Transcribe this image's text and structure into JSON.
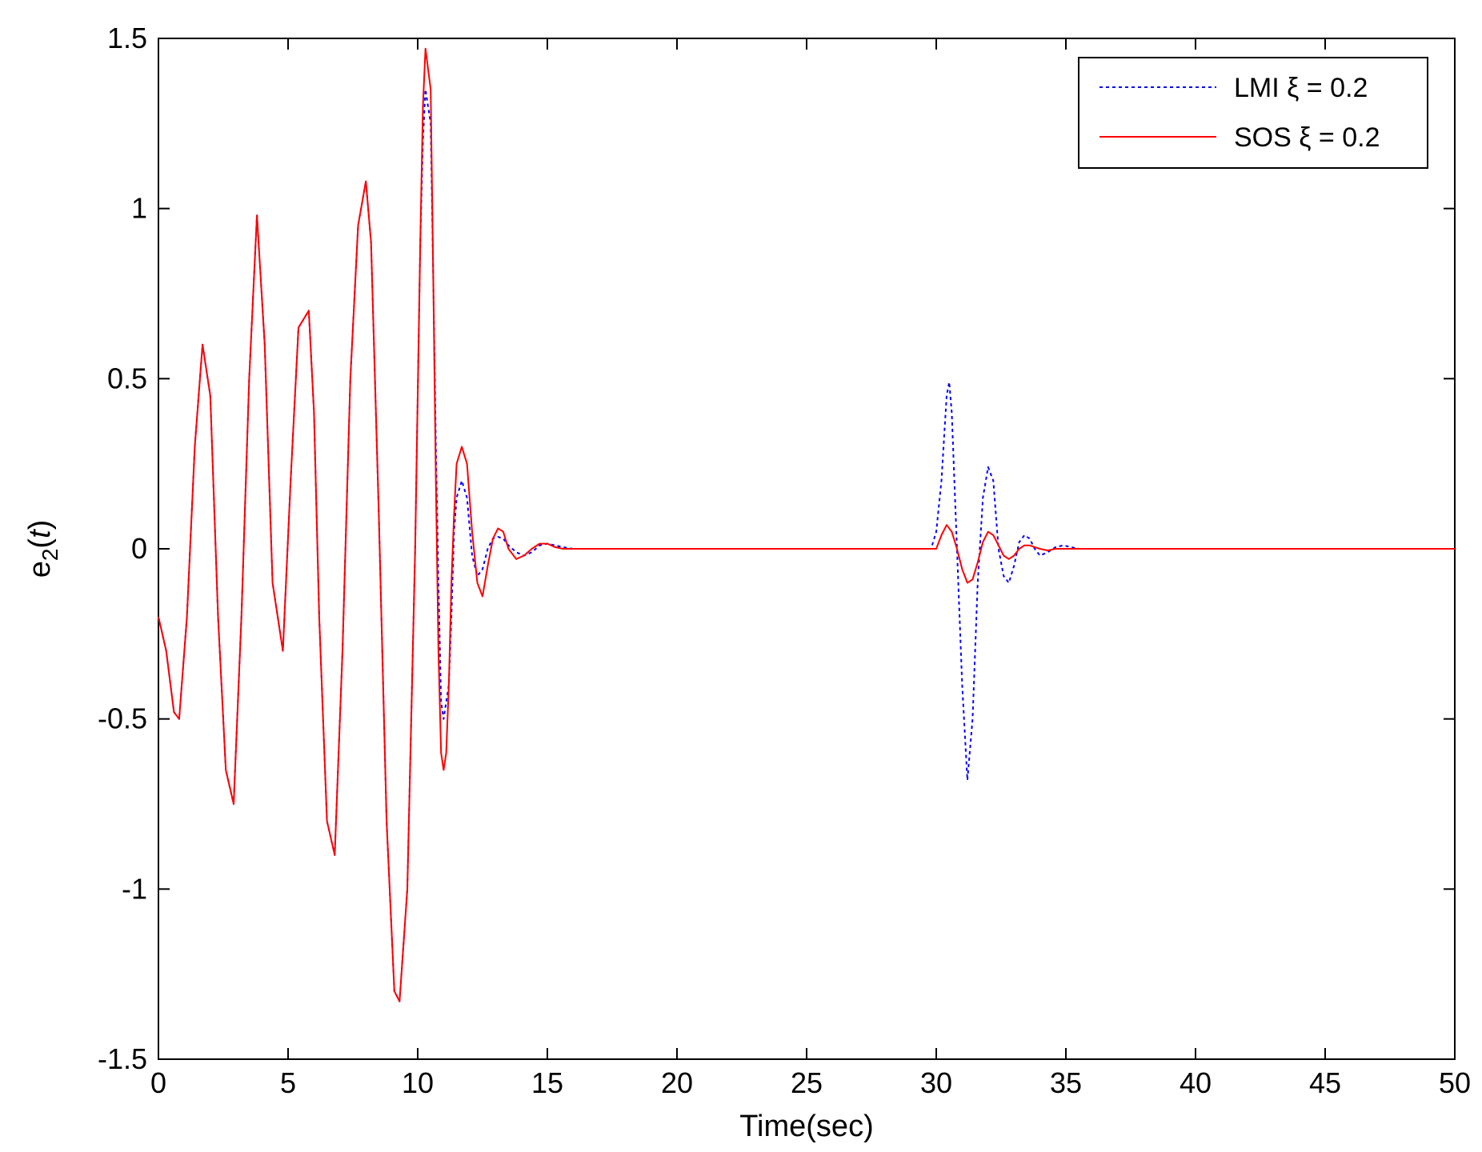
{
  "chart_data": {
    "type": "line",
    "title": "",
    "xlabel": "Time(sec)",
    "ylabel": "e2(t)",
    "ylabel_base": "e",
    "ylabel_sub": "2",
    "ylabel_open": "(",
    "ylabel_arg": "t",
    "ylabel_close": ")",
    "xlim": [
      0,
      50
    ],
    "ylim": [
      -1.5,
      1.5
    ],
    "xticks": [
      0,
      5,
      10,
      15,
      20,
      25,
      30,
      35,
      40,
      45,
      50
    ],
    "yticks": [
      -1.5,
      -1,
      -0.5,
      0,
      0.5,
      1,
      1.5
    ],
    "xtick_labels": [
      "0",
      "5",
      "10",
      "15",
      "20",
      "25",
      "30",
      "35",
      "40",
      "45",
      "50"
    ],
    "ytick_labels": [
      "-1.5",
      "-1",
      "-0.5",
      "0",
      "0.5",
      "1",
      "1.5"
    ],
    "grid": false,
    "legend_position": "top-right",
    "series": [
      {
        "name": "LMI  ξ = 0.2",
        "color": "#0000ff",
        "style": "dotted",
        "x": [
          0,
          0.3,
          0.6,
          0.8,
          1.1,
          1.4,
          1.7,
          2.0,
          2.3,
          2.6,
          2.9,
          3.2,
          3.5,
          3.8,
          4.1,
          4.4,
          4.8,
          5.1,
          5.4,
          5.8,
          6.0,
          6.2,
          6.5,
          6.8,
          7.1,
          7.4,
          7.7,
          8.0,
          8.2,
          8.5,
          8.8,
          9.1,
          9.3,
          9.6,
          9.9,
          10.1,
          10.2,
          10.3,
          10.5,
          10.6,
          10.7,
          10.8,
          10.9,
          11.0,
          11.1,
          11.2,
          11.3,
          11.4,
          11.5,
          11.7,
          11.9,
          12.1,
          12.3,
          12.5,
          12.7,
          12.9,
          13.1,
          13.3,
          13.5,
          13.8,
          14.1,
          14.4,
          14.7,
          15.0,
          15.3,
          15.6,
          16.0,
          16.4,
          20,
          25,
          29.8,
          30.0,
          30.2,
          30.4,
          30.5,
          30.6,
          30.8,
          31.0,
          31.2,
          31.4,
          31.6,
          31.8,
          32.0,
          32.2,
          32.4,
          32.6,
          32.8,
          33.0,
          33.2,
          33.4,
          33.6,
          33.8,
          34.0,
          34.3,
          34.6,
          34.9,
          35.2,
          35.5,
          35.9,
          40,
          45,
          50
        ],
        "values": [
          -0.2,
          -0.3,
          -0.48,
          -0.5,
          -0.2,
          0.3,
          0.6,
          0.45,
          -0.2,
          -0.65,
          -0.75,
          -0.2,
          0.5,
          0.98,
          0.6,
          -0.1,
          -0.3,
          0.2,
          0.65,
          0.7,
          0.4,
          -0.2,
          -0.8,
          -0.9,
          -0.3,
          0.5,
          0.95,
          1.08,
          0.9,
          0.1,
          -0.8,
          -1.3,
          -1.33,
          -1.0,
          0.0,
          0.9,
          1.2,
          1.35,
          1.25,
          0.8,
          0.3,
          -0.1,
          -0.45,
          -0.5,
          -0.45,
          -0.4,
          -0.2,
          0.05,
          0.15,
          0.2,
          0.15,
          -0.02,
          -0.08,
          -0.06,
          0.0,
          0.03,
          0.035,
          0.03,
          0.01,
          -0.01,
          -0.02,
          -0.01,
          0.01,
          0.015,
          0.01,
          0.005,
          0.0,
          0.0,
          0.0,
          0.0,
          0.0,
          0.05,
          0.2,
          0.45,
          0.49,
          0.4,
          0.0,
          -0.4,
          -0.68,
          -0.5,
          -0.1,
          0.15,
          0.24,
          0.2,
          0.0,
          -0.08,
          -0.1,
          -0.05,
          0.02,
          0.04,
          0.03,
          0.0,
          -0.02,
          -0.01,
          0.005,
          0.01,
          0.005,
          0.0,
          0.0,
          0.0,
          0.0,
          0.0
        ]
      },
      {
        "name": "SOS ξ = 0.2",
        "color": "#ff0000",
        "style": "solid",
        "x": [
          0,
          0.3,
          0.6,
          0.8,
          1.1,
          1.4,
          1.7,
          2.0,
          2.3,
          2.6,
          2.9,
          3.2,
          3.5,
          3.8,
          4.1,
          4.4,
          4.8,
          5.1,
          5.4,
          5.8,
          6.0,
          6.2,
          6.5,
          6.8,
          7.1,
          7.4,
          7.7,
          8.0,
          8.2,
          8.5,
          8.8,
          9.1,
          9.3,
          9.6,
          9.9,
          10.1,
          10.2,
          10.3,
          10.5,
          10.6,
          10.7,
          10.8,
          10.9,
          11.0,
          11.1,
          11.2,
          11.3,
          11.4,
          11.5,
          11.7,
          11.9,
          12.1,
          12.3,
          12.5,
          12.7,
          12.9,
          13.1,
          13.3,
          13.5,
          13.8,
          14.1,
          14.4,
          14.7,
          15.0,
          15.3,
          15.6,
          16.0,
          16.4,
          20,
          25,
          29.8,
          30.0,
          30.2,
          30.4,
          30.6,
          30.8,
          31.0,
          31.2,
          31.4,
          31.6,
          31.8,
          32.0,
          32.2,
          32.4,
          32.6,
          32.8,
          33.0,
          33.2,
          33.4,
          33.6,
          33.8,
          34.0,
          34.3,
          34.6,
          34.9,
          35.2,
          35.5,
          35.9,
          40,
          45,
          50
        ],
        "values": [
          -0.2,
          -0.3,
          -0.48,
          -0.5,
          -0.2,
          0.3,
          0.6,
          0.45,
          -0.2,
          -0.65,
          -0.75,
          -0.2,
          0.5,
          0.98,
          0.6,
          -0.1,
          -0.3,
          0.2,
          0.65,
          0.7,
          0.4,
          -0.2,
          -0.8,
          -0.9,
          -0.3,
          0.5,
          0.95,
          1.08,
          0.9,
          0.1,
          -0.8,
          -1.3,
          -1.33,
          -1.0,
          0.0,
          0.9,
          1.3,
          1.47,
          1.35,
          0.8,
          0.2,
          -0.3,
          -0.6,
          -0.65,
          -0.6,
          -0.4,
          -0.1,
          0.1,
          0.25,
          0.3,
          0.25,
          0.05,
          -0.1,
          -0.14,
          -0.05,
          0.03,
          0.06,
          0.05,
          0.0,
          -0.03,
          -0.02,
          0.0,
          0.015,
          0.015,
          0.005,
          0.0,
          0.0,
          0.0,
          0.0,
          0.0,
          0.0,
          0.0,
          0.04,
          0.07,
          0.05,
          0.0,
          -0.06,
          -0.1,
          -0.09,
          -0.04,
          0.02,
          0.05,
          0.04,
          0.01,
          -0.02,
          -0.03,
          -0.02,
          0.0,
          0.01,
          0.01,
          0.005,
          0.0,
          -0.005,
          0.0,
          0.0,
          0.0,
          0.0,
          0.0,
          0.0,
          0.0,
          0.0
        ]
      }
    ]
  }
}
